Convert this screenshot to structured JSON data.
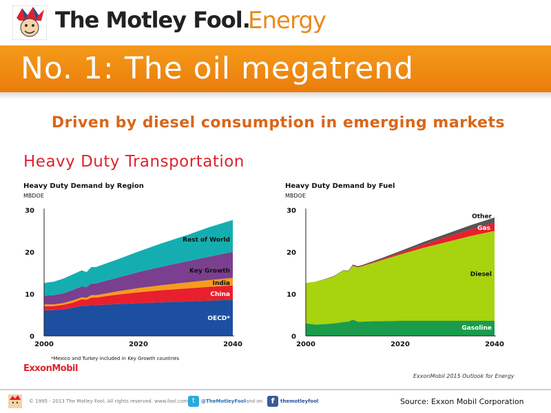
{
  "header": {
    "brand_name": "The Motley Fool.",
    "brand_sub": "Energy"
  },
  "slide": {
    "title": "No. 1: The oil megatrend",
    "subtitle": "Driven by diesel consumption in emerging markets",
    "chart_heading": "Heavy Duty Transportation",
    "exxon_logo": "ExxonMobil",
    "outlook_note": "ExxonMobil 2015 Outlook for Energy"
  },
  "footer": {
    "copyright": "© 1995 - 2013 The Motley Fool. All rights reserved. www.fool.com",
    "twitter": "@TheMotleyFool",
    "and_on": "and on",
    "facebook": "themotleyfool",
    "source": "Source: Exxon Mobil Corporation"
  },
  "colors": {
    "orange": "#f28c14",
    "title_red": "#e0222b",
    "subtitle_orange": "#d9661a"
  },
  "chart_data": [
    {
      "type": "area",
      "stacked": true,
      "title": "Heavy Duty Demand by Region",
      "ylabel": "MBDOE",
      "ylim": [
        0,
        30
      ],
      "yticks": [
        0,
        10,
        20,
        30
      ],
      "xticks": [
        2000,
        2020,
        2040
      ],
      "xlim": [
        2000,
        2040
      ],
      "footnote": "*Mexico and Turkey included in Key Growth countries",
      "x": [
        2000,
        2002,
        2004,
        2006,
        2008,
        2009,
        2010,
        2011,
        2012,
        2014,
        2016,
        2020,
        2025,
        2030,
        2035,
        2040
      ],
      "series": [
        {
          "name": "OECD*",
          "color": "#1c4fa0",
          "values": [
            6.1,
            6.1,
            6.3,
            6.7,
            7.2,
            7.1,
            7.4,
            7.3,
            7.4,
            7.5,
            7.6,
            7.8,
            8.0,
            8.2,
            8.4,
            8.6
          ]
        },
        {
          "name": "China",
          "color": "#e8202d",
          "values": [
            1.0,
            1.0,
            1.1,
            1.2,
            1.5,
            1.5,
            1.7,
            1.8,
            1.9,
            2.1,
            2.3,
            2.6,
            2.9,
            3.1,
            3.3,
            3.4
          ]
        },
        {
          "name": "India",
          "color": "#f79b1c",
          "values": [
            0.4,
            0.4,
            0.4,
            0.5,
            0.5,
            0.5,
            0.6,
            0.6,
            0.6,
            0.7,
            0.8,
            1.0,
            1.2,
            1.4,
            1.6,
            1.8
          ]
        },
        {
          "name": "Key Growth",
          "color": "#7a3f8e",
          "values": [
            2.1,
            2.2,
            2.3,
            2.5,
            2.6,
            2.5,
            2.8,
            2.8,
            2.9,
            3.1,
            3.3,
            3.8,
            4.4,
            5.0,
            5.6,
            6.2
          ]
        },
        {
          "name": "Rest of World",
          "color": "#15aeb0",
          "values": [
            3.0,
            3.2,
            3.5,
            3.7,
            3.8,
            3.6,
            3.9,
            3.9,
            4.0,
            4.2,
            4.4,
            4.9,
            5.6,
            6.2,
            7.0,
            7.6
          ]
        }
      ]
    },
    {
      "type": "area",
      "stacked": true,
      "title": "Heavy Duty Demand by Fuel",
      "ylabel": "MBDOE",
      "ylim": [
        0,
        30
      ],
      "yticks": [
        0,
        10,
        20,
        30
      ],
      "xticks": [
        2000,
        2020,
        2040
      ],
      "xlim": [
        2000,
        2040
      ],
      "x": [
        2000,
        2002,
        2004,
        2006,
        2008,
        2009,
        2010,
        2011,
        2012,
        2014,
        2016,
        2020,
        2025,
        2030,
        2035,
        2040
      ],
      "series": [
        {
          "name": "Gasoline",
          "color": "#1a9c4c",
          "values": [
            3.0,
            2.7,
            2.8,
            3.0,
            3.3,
            3.4,
            3.9,
            3.4,
            3.4,
            3.5,
            3.5,
            3.6,
            3.6,
            3.6,
            3.6,
            3.6
          ]
        },
        {
          "name": "Diesel",
          "color": "#a8d30f",
          "values": [
            9.6,
            10.2,
            10.6,
            11.2,
            12.3,
            12.0,
            12.8,
            12.9,
            13.2,
            13.8,
            14.5,
            15.8,
            17.4,
            18.8,
            20.2,
            21.4
          ]
        },
        {
          "name": "Gas",
          "color": "#e8202d",
          "values": [
            0.0,
            0.0,
            0.0,
            0.0,
            0.0,
            0.0,
            0.1,
            0.1,
            0.1,
            0.2,
            0.2,
            0.4,
            0.8,
            1.2,
            1.6,
            2.0
          ]
        },
        {
          "name": "Other",
          "color": "#555555",
          "values": [
            0.0,
            0.0,
            0.1,
            0.1,
            0.1,
            0.1,
            0.2,
            0.2,
            0.2,
            0.2,
            0.3,
            0.4,
            0.6,
            0.8,
            1.0,
            1.2
          ]
        }
      ]
    }
  ]
}
